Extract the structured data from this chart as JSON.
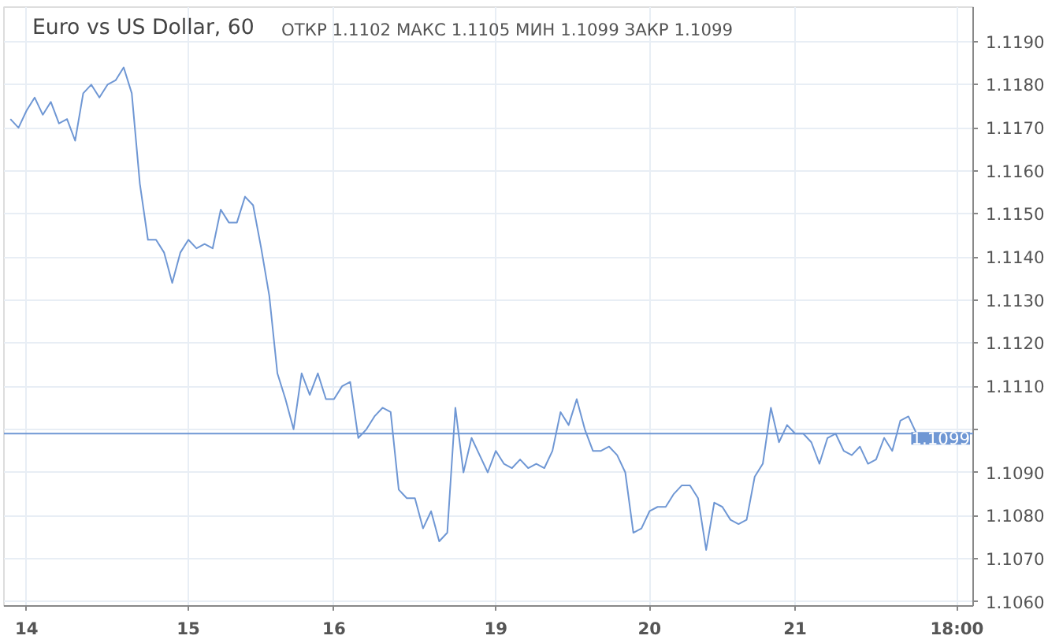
{
  "chart_data": {
    "type": "line",
    "title": "Euro vs US Dollar, 60",
    "subtitle": "ОТКР 1.1102   МАКС 1.1105   МИН 1.1099   ЗАКР 1.1099",
    "categories": [
      null,
      null,
      "14",
      null,
      null,
      null,
      null,
      null,
      null,
      null,
      null,
      null,
      null,
      null,
      null,
      null,
      null,
      null,
      null,
      null,
      null,
      null,
      "15",
      null,
      null,
      null,
      null,
      null,
      null,
      null,
      null,
      null,
      null,
      null,
      null,
      null,
      null,
      null,
      null,
      null,
      "16",
      null,
      null,
      null,
      null,
      null,
      null,
      null,
      null,
      null,
      null,
      null,
      null,
      null,
      null,
      null,
      null,
      null,
      null,
      null,
      "19",
      null,
      null,
      null,
      null,
      null,
      null,
      null,
      null,
      null,
      null,
      null,
      null,
      null,
      null,
      null,
      null,
      null,
      null,
      "20",
      null,
      null,
      null,
      null,
      null,
      null,
      null,
      null,
      null,
      null,
      null,
      null,
      null,
      null,
      null,
      null,
      null,
      "21",
      null,
      null,
      null,
      null,
      null,
      null,
      null,
      null,
      null,
      null,
      null,
      null,
      null,
      null,
      null,
      null,
      null,
      null,
      null,
      "18:00"
    ],
    "series": [
      {
        "color": "#6f97d4",
        "values": [
          1.1172,
          1.117,
          1.1174,
          1.1177,
          1.1173,
          1.1176,
          1.1171,
          1.1172,
          1.1167,
          1.1178,
          1.118,
          1.1177,
          1.118,
          1.1181,
          1.1184,
          1.1178,
          1.1157,
          1.1144,
          1.1144,
          1.1141,
          1.1134,
          1.1141,
          1.1144,
          1.1142,
          1.1143,
          1.1142,
          1.1151,
          1.1148,
          1.1148,
          1.1154,
          1.1152,
          1.1142,
          1.1131,
          1.1113,
          1.1107,
          1.11,
          1.1113,
          1.1108,
          1.1113,
          1.1107,
          1.1107,
          1.111,
          1.1111,
          1.1098,
          1.11,
          1.1103,
          1.1105,
          1.1104,
          1.1086,
          1.1084,
          1.1084,
          1.1077,
          1.1081,
          1.1074,
          1.1076,
          1.1105,
          1.109,
          1.1098,
          1.1094,
          1.109,
          1.1095,
          1.1092,
          1.1091,
          1.1093,
          1.1091,
          1.1092,
          1.1091,
          1.1095,
          1.1104,
          1.1101,
          1.1107,
          1.11,
          1.1095,
          1.1095,
          1.1096,
          1.1094,
          1.109,
          1.1076,
          1.1077,
          1.1081,
          1.1082,
          1.1082,
          1.1085,
          1.1087,
          1.1087,
          1.1084,
          1.1072,
          1.1083,
          1.1082,
          1.1079,
          1.1078,
          1.1079,
          1.1089,
          1.1092,
          1.1105,
          1.1097,
          1.1101,
          1.1099,
          1.1099,
          1.1097,
          1.1092,
          1.1098,
          1.1099,
          1.1095,
          1.1094,
          1.1096,
          1.1092,
          1.1093,
          1.1098,
          1.1095,
          1.1102,
          1.1103,
          1.1099,
          null,
          null,
          null,
          null,
          null
        ]
      }
    ],
    "ylim": [
      1.1059,
      1.1198
    ],
    "yticks": [
      {
        "value": 1.106,
        "label": "1.1060"
      },
      {
        "value": 1.107,
        "label": "1.1070"
      },
      {
        "value": 1.108,
        "label": "1.1080"
      },
      {
        "value": 1.109,
        "label": "1.1090"
      },
      {
        "value": 1.11,
        "label": null
      },
      {
        "value": 1.111,
        "label": "1.1110"
      },
      {
        "value": 1.112,
        "label": "1.1120"
      },
      {
        "value": 1.113,
        "label": "1.1130"
      },
      {
        "value": 1.114,
        "label": "1.1140"
      },
      {
        "value": 1.115,
        "label": "1.1150"
      },
      {
        "value": 1.116,
        "label": "1.1160"
      },
      {
        "value": 1.117,
        "label": "1.1170"
      },
      {
        "value": 1.118,
        "label": "1.1180"
      },
      {
        "value": 1.119,
        "label": "1.1190"
      }
    ],
    "ref_lines": [
      {
        "axis": "y",
        "value": 1.1099,
        "label": "1.1099",
        "color": "#6f97d4"
      }
    ],
    "grid": true,
    "marker": "none",
    "line_style": "solid"
  }
}
